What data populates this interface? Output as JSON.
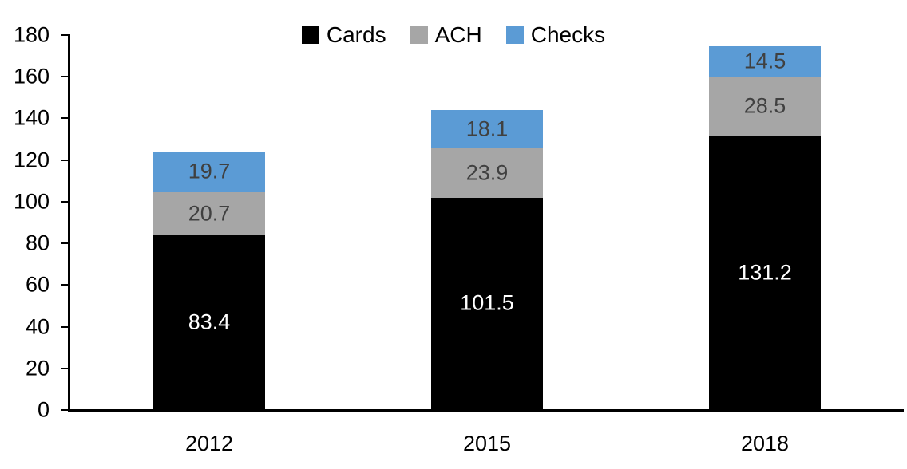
{
  "chart_data": {
    "type": "bar",
    "stacked": true,
    "title": "",
    "categories": [
      "2012",
      "2015",
      "2018"
    ],
    "series": [
      {
        "name": "Cards",
        "color": "#000000",
        "label_color": "#FFFFFF",
        "values": [
          83.4,
          101.5,
          131.2
        ]
      },
      {
        "name": "ACH",
        "color": "#A6A6A6",
        "label_color": "#404040",
        "values": [
          20.7,
          23.9,
          28.5
        ]
      },
      {
        "name": "Checks",
        "color": "#5B9BD5",
        "label_color": "#404040",
        "values": [
          19.7,
          18.1,
          14.5
        ]
      }
    ],
    "totals": [
      123.8,
      143.5,
      174.2
    ],
    "ylim": [
      0,
      180
    ],
    "y_ticks": [
      0,
      20,
      40,
      60,
      80,
      100,
      120,
      140,
      160,
      180
    ],
    "legend_position": "top-center",
    "legend_entries": [
      "Cards",
      "ACH",
      "Checks"
    ],
    "grid": false,
    "data_labels": true,
    "axis_color": "#000000",
    "background": "#FFFFFF"
  }
}
